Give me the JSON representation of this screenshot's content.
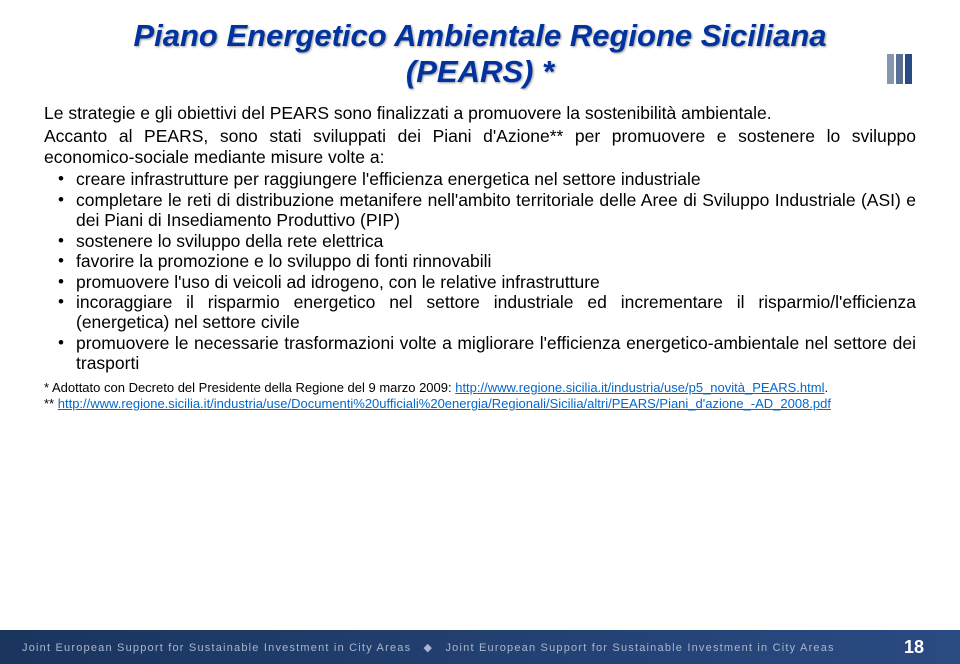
{
  "title_line1": "Piano Energetico Ambientale Regione Siciliana",
  "title_line2": "(PEARS) *",
  "intro1": "Le strategie e gli obiettivi del PEARS sono finalizzati a promuovere la sostenibilità ambientale.",
  "intro2": "Accanto al PEARS, sono stati sviluppati dei Piani d'Azione** per promuovere e sostenere lo sviluppo economico-sociale mediante misure volte a:",
  "bullets": [
    "creare infrastrutture per raggiungere l'efficienza energetica nel settore industriale",
    "completare le reti di distribuzione metanifere nell'ambito territoriale delle Aree di Sviluppo Industriale (ASI) e dei Piani di Insediamento Produttivo (PIP)",
    "sostenere lo sviluppo della rete elettrica",
    "favorire la promozione e lo sviluppo di fonti rinnovabili",
    "promuovere l'uso di veicoli ad idrogeno, con le relative infrastrutture",
    "incoraggiare il risparmio energetico nel settore industriale ed incrementare il risparmio/l'efficienza (energetica) nel settore civile",
    "promuovere le necessarie trasformazioni volte a migliorare l'efficienza energetico-ambientale nel settore dei trasporti"
  ],
  "footnote_prefix1": "* Adottato con Decreto del Presidente della Regione del 9 marzo 2009: ",
  "footnote_link1": "http://www.regione.sicilia.it/industria/use/p5_novità_PEARS.html",
  "footnote_period": ".",
  "footnote_prefix2": "** ",
  "footnote_link2": "http://www.regione.sicilia.it/industria/use/Documenti%20ufficiali%20energia/Regionali/Sicilia/altri/PEARS/Piani_d'azione_-AD_2008.pdf",
  "footer_text": "Joint European Support for Sustainable Investment in City Areas",
  "page_number": "18",
  "colors": {
    "title": "#0033a0",
    "link": "#0068cf",
    "footer_bg_start": "#1a355e",
    "footer_bg_end": "#2a4a82",
    "footer_text": "#a8b7cd"
  }
}
